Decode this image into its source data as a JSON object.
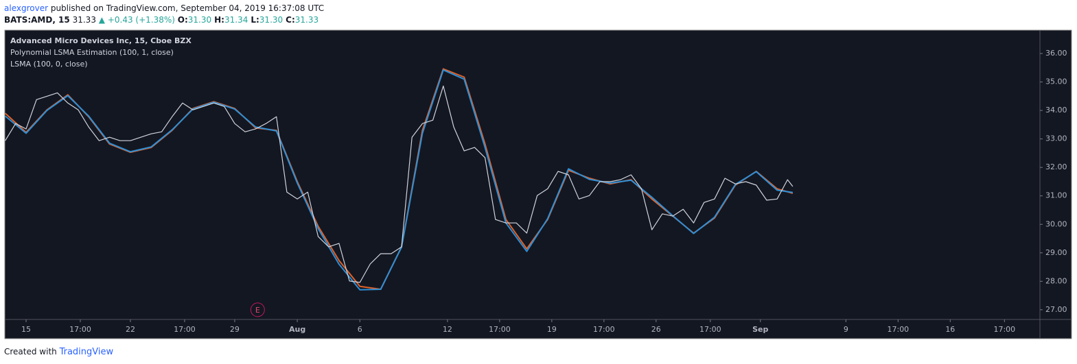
{
  "header": {
    "author": "alexgrover",
    "published": " published on TradingView.com, September 04, 2019 16:37:08 UTC",
    "symbol": "BATS:AMD, 15",
    "last": "31.33",
    "change": "▲ +0.43 (+1.38%)",
    "ohlc": [
      {
        "label": "O:",
        "value": "31.30"
      },
      {
        "label": "H:",
        "value": "31.34"
      },
      {
        "label": "L:",
        "value": "31.30"
      },
      {
        "label": "C:",
        "value": "31.33"
      }
    ]
  },
  "footer": {
    "created": "Created with",
    "brand": "TradingView"
  },
  "chart_data": {
    "type": "line",
    "grid": false,
    "xlim": [
      -1.02,
      48.6
    ],
    "ylim": [
      26.66,
      36.82
    ],
    "xticks": [
      {
        "value": 0,
        "label": "15"
      },
      {
        "value": 2.6,
        "label": "17:00"
      },
      {
        "value": 5,
        "label": "22"
      },
      {
        "value": 7.6,
        "label": "17:00"
      },
      {
        "value": 10,
        "label": "29"
      },
      {
        "value": 13,
        "label": "Aug"
      },
      {
        "value": 16,
        "label": "6"
      },
      {
        "value": 20.2,
        "label": "12"
      },
      {
        "value": 22.7,
        "label": "17:00"
      },
      {
        "value": 25.2,
        "label": "19"
      },
      {
        "value": 27.7,
        "label": "17:00"
      },
      {
        "value": 30.2,
        "label": "26"
      },
      {
        "value": 32.8,
        "label": "17:00"
      },
      {
        "value": 35.2,
        "label": "Sep"
      },
      {
        "value": 39.3,
        "label": "9"
      },
      {
        "value": 41.8,
        "label": "17:00"
      },
      {
        "value": 44.3,
        "label": "16"
      },
      {
        "value": 46.9,
        "label": "17:00"
      }
    ],
    "yticks": [
      {
        "value": 27,
        "label": "27.00"
      },
      {
        "value": 28,
        "label": "28.00"
      },
      {
        "value": 29,
        "label": "29.00"
      },
      {
        "value": 30,
        "label": "30.00"
      },
      {
        "value": 31,
        "label": "31.00"
      },
      {
        "value": 32,
        "label": "32.00"
      },
      {
        "value": 33,
        "label": "33.00"
      },
      {
        "value": 34,
        "label": "34.00"
      },
      {
        "value": 35,
        "label": "35.00"
      },
      {
        "value": 36,
        "label": "36.00"
      }
    ],
    "series": [
      {
        "name": "Advanced Micro Devices Inc, 15, Cboe BZX",
        "color": "#d1d4dc",
        "x": [
          -1,
          -0.5,
          0,
          0.5,
          1,
          1.5,
          2,
          2.5,
          3,
          3.5,
          4,
          4.5,
          5,
          5.5,
          6,
          6.5,
          7,
          7.5,
          8,
          8.5,
          9,
          9.5,
          10,
          10.5,
          11,
          11.5,
          12,
          12.5,
          13,
          13.5,
          14,
          14.5,
          15,
          15.5,
          16,
          16.5,
          17,
          17.5,
          18,
          18.5,
          19,
          19.5,
          20,
          20.5,
          21,
          21.5,
          22,
          22.5,
          23,
          23.5,
          24,
          24.5,
          25,
          25.5,
          26,
          26.5,
          27,
          27.5,
          28,
          28.5,
          29,
          29.5,
          30,
          30.5,
          31,
          31.5,
          32,
          32.5,
          33,
          33.5,
          34,
          34.5,
          35,
          35.5,
          36,
          36.5,
          36.75
        ],
        "values": [
          32.94,
          33.54,
          33.35,
          34.38,
          34.5,
          34.62,
          34.26,
          34.02,
          33.42,
          32.94,
          33.06,
          32.94,
          32.94,
          33.06,
          33.18,
          33.25,
          33.78,
          34.26,
          34.02,
          34.14,
          34.26,
          34.14,
          33.54,
          33.25,
          33.35,
          33.54,
          33.78,
          31.13,
          30.89,
          31.13,
          29.57,
          29.21,
          29.33,
          28.01,
          27.96,
          28.61,
          28.97,
          28.97,
          29.21,
          33.06,
          33.54,
          33.66,
          34.86,
          33.42,
          32.58,
          32.7,
          32.34,
          30.17,
          30.05,
          30.05,
          29.69,
          31.01,
          31.25,
          31.86,
          31.74,
          30.89,
          31.01,
          31.5,
          31.5,
          31.57,
          31.74,
          31.25,
          29.81,
          30.37,
          30.29,
          30.53,
          30.05,
          30.77,
          30.89,
          31.62,
          31.42,
          31.5,
          31.38,
          30.85,
          30.89,
          31.57,
          31.33
        ]
      },
      {
        "name": "Polynomial LSMA Estimation (100, 1, close)",
        "color": "#e0622a",
        "x": [
          -1,
          0,
          1,
          2,
          3,
          4,
          5,
          6,
          7,
          8,
          9,
          10,
          11,
          12,
          13,
          14,
          15,
          16,
          17,
          18,
          19,
          20,
          21,
          22,
          23,
          24,
          25,
          26,
          27,
          28,
          29,
          30,
          31,
          32,
          33,
          34,
          35,
          36,
          36.75
        ],
        "values": [
          33.9,
          33.23,
          34.02,
          34.55,
          33.78,
          32.82,
          32.53,
          32.7,
          33.3,
          34.07,
          34.31,
          34.07,
          33.39,
          33.3,
          31.5,
          29.93,
          28.73,
          27.82,
          27.72,
          29.21,
          33.3,
          35.46,
          35.17,
          32.82,
          30.17,
          29.14,
          30.17,
          31.9,
          31.62,
          31.42,
          31.57,
          30.89,
          30.29,
          29.69,
          30.22,
          31.38,
          31.86,
          31.25,
          31.09
        ]
      },
      {
        "name": "LSMA (100, 0, close)",
        "color": "#2e8fd6",
        "x": [
          -1,
          0,
          1,
          2,
          3,
          4,
          5,
          6,
          7,
          8,
          9,
          10,
          11,
          12,
          13,
          14,
          15,
          16,
          17,
          18,
          19,
          20,
          21,
          22,
          23,
          24,
          25,
          26,
          27,
          28,
          29,
          30,
          31,
          32,
          33,
          34,
          35,
          36,
          36.75
        ],
        "values": [
          33.8,
          33.2,
          34.0,
          34.52,
          33.8,
          32.85,
          32.55,
          32.72,
          33.32,
          34.05,
          34.29,
          34.05,
          33.42,
          33.28,
          31.45,
          29.85,
          28.6,
          27.7,
          27.72,
          29.2,
          33.2,
          35.42,
          35.1,
          32.7,
          30.05,
          29.05,
          30.2,
          31.95,
          31.58,
          31.45,
          31.55,
          30.95,
          30.3,
          29.68,
          30.25,
          31.4,
          31.85,
          31.2,
          31.12
        ]
      }
    ],
    "annotations": [
      {
        "x": 11.1,
        "y": 27,
        "label": "E"
      }
    ]
  }
}
